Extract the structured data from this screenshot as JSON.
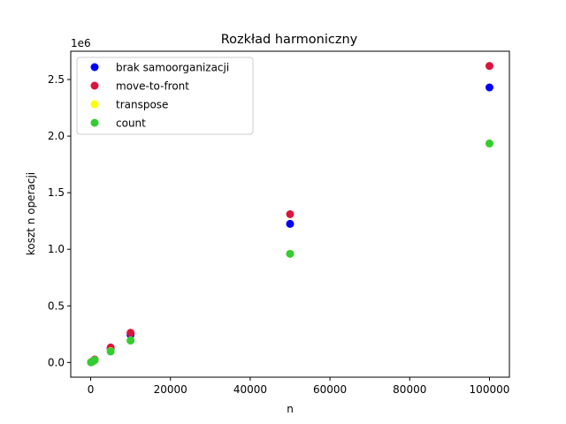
{
  "chart_data": {
    "type": "scatter",
    "title": "Rozkład harmoniczny",
    "xlabel": "n",
    "ylabel": "koszt n operacji",
    "y_offset_label": "1e6",
    "xlim": [
      -5000,
      105000
    ],
    "ylim": [
      -0.13,
      2.75
    ],
    "xticks": [
      0,
      20000,
      40000,
      60000,
      80000,
      100000
    ],
    "yticks": [
      0.0,
      0.5,
      1.0,
      1.5,
      2.0,
      2.5
    ],
    "xtick_labels": [
      "0",
      "20000",
      "40000",
      "60000",
      "80000",
      "100000"
    ],
    "ytick_labels": [
      "0.0",
      "0.5",
      "1.0",
      "1.5",
      "2.0",
      "2.5"
    ],
    "legend_position": "upper-left",
    "grid": false,
    "series": [
      {
        "name": "brak samoorganizacji",
        "color": "#0000ff",
        "x": [
          100,
          500,
          1000,
          5000,
          10000,
          50000,
          100000
        ],
        "y": [
          0.002,
          0.01,
          0.024,
          0.122,
          0.245,
          1.225,
          2.43
        ]
      },
      {
        "name": "move-to-front",
        "color": "#dc143c",
        "x": [
          100,
          500,
          1000,
          5000,
          10000,
          50000,
          100000
        ],
        "y": [
          0.002,
          0.011,
          0.026,
          0.132,
          0.262,
          1.31,
          2.62
        ]
      },
      {
        "name": "transpose",
        "color": "#ffff00",
        "x": [
          100,
          500,
          1000,
          5000,
          10000,
          50000,
          100000
        ],
        "y": [
          0.002,
          0.009,
          0.02,
          0.1,
          0.195,
          0.96,
          1.935
        ]
      },
      {
        "name": "count",
        "color": "#32cd32",
        "x": [
          100,
          500,
          1000,
          5000,
          10000,
          50000,
          100000
        ],
        "y": [
          0.002,
          0.009,
          0.02,
          0.097,
          0.193,
          0.96,
          1.935
        ]
      }
    ]
  }
}
